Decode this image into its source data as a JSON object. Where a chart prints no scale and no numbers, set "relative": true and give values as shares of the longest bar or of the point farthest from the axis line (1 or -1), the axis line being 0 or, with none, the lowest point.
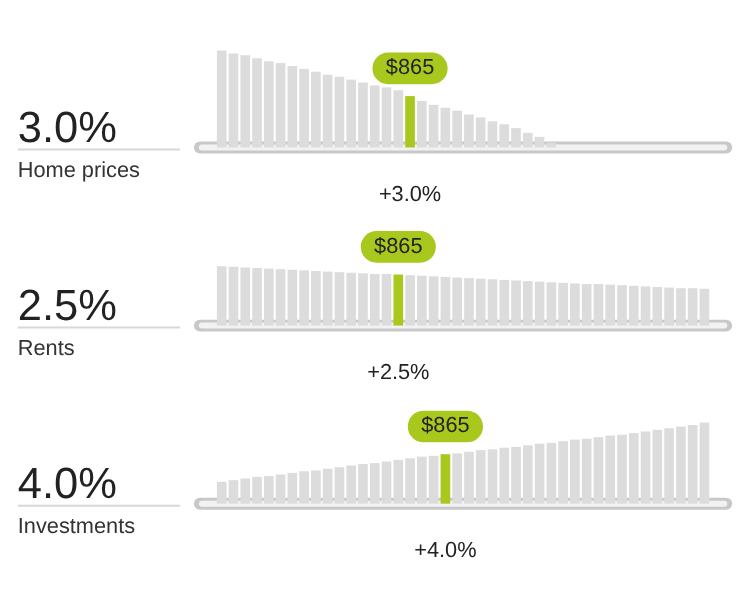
{
  "chart_data": [
    {
      "type": "bar",
      "relative": true,
      "title": "3.0%",
      "subtitle": "Home prices",
      "annotations": [
        "$865",
        "+3.0%"
      ],
      "categories": [
        null,
        null,
        null,
        null,
        null,
        null,
        null,
        null,
        null,
        null,
        null,
        null,
        null,
        null,
        null,
        null,
        null,
        null,
        null,
        null,
        null,
        null,
        null,
        null,
        null,
        null,
        null,
        null,
        null
      ],
      "values": [
        1.0,
        0.97,
        0.95,
        0.92,
        0.89,
        0.87,
        0.84,
        0.81,
        0.78,
        0.75,
        0.73,
        0.7,
        0.67,
        0.64,
        0.62,
        0.59,
        0.53,
        0.48,
        0.44,
        0.41,
        0.38,
        0.34,
        0.31,
        0.27,
        0.24,
        0.2,
        0.15,
        0.11,
        0.05
      ],
      "colors": [
        "#dcdcdc",
        "#dcdcdc",
        "#dcdcdc",
        "#dcdcdc",
        "#dcdcdc",
        "#dcdcdc",
        "#dcdcdc",
        "#dcdcdc",
        "#dcdcdc",
        "#dcdcdc",
        "#dcdcdc",
        "#dcdcdc",
        "#dcdcdc",
        "#dcdcdc",
        "#dcdcdc",
        "#dcdcdc",
        "#a8c81e",
        "#dcdcdc",
        "#dcdcdc",
        "#dcdcdc",
        "#dcdcdc",
        "#dcdcdc",
        "#dcdcdc",
        "#dcdcdc",
        "#dcdcdc",
        "#dcdcdc",
        "#dcdcdc",
        "#dcdcdc",
        "#dcdcdc"
      ]
    },
    {
      "type": "bar",
      "relative": true,
      "title": "2.5%",
      "subtitle": "Rents",
      "annotations": [
        "$865",
        "+2.5%"
      ],
      "categories": [
        null,
        null,
        null,
        null,
        null,
        null,
        null,
        null,
        null,
        null,
        null,
        null,
        null,
        null,
        null,
        null,
        null,
        null,
        null,
        null,
        null,
        null,
        null,
        null,
        null,
        null,
        null,
        null,
        null,
        null,
        null,
        null,
        null,
        null,
        null,
        null,
        null,
        null,
        null,
        null,
        null,
        null
      ],
      "values": [
        1.0,
        0.99,
        0.98,
        0.97,
        0.96,
        0.95,
        0.94,
        0.93,
        0.92,
        0.91,
        0.9,
        0.89,
        0.88,
        0.87,
        0.87,
        0.86,
        0.85,
        0.84,
        0.83,
        0.82,
        0.81,
        0.8,
        0.79,
        0.78,
        0.77,
        0.76,
        0.75,
        0.74,
        0.73,
        0.72,
        0.71,
        0.7,
        0.7,
        0.69,
        0.68,
        0.67,
        0.66,
        0.65,
        0.64,
        0.63,
        0.63,
        0.62
      ],
      "colors": [
        "#dcdcdc",
        "#dcdcdc",
        "#dcdcdc",
        "#dcdcdc",
        "#dcdcdc",
        "#dcdcdc",
        "#dcdcdc",
        "#dcdcdc",
        "#dcdcdc",
        "#dcdcdc",
        "#dcdcdc",
        "#dcdcdc",
        "#dcdcdc",
        "#dcdcdc",
        "#dcdcdc",
        "#a8c81e",
        "#dcdcdc",
        "#dcdcdc",
        "#dcdcdc",
        "#dcdcdc",
        "#dcdcdc",
        "#dcdcdc",
        "#dcdcdc",
        "#dcdcdc",
        "#dcdcdc",
        "#dcdcdc",
        "#dcdcdc",
        "#dcdcdc",
        "#dcdcdc",
        "#dcdcdc",
        "#dcdcdc",
        "#dcdcdc",
        "#dcdcdc",
        "#dcdcdc",
        "#dcdcdc",
        "#dcdcdc",
        "#dcdcdc",
        "#dcdcdc",
        "#dcdcdc",
        "#dcdcdc",
        "#dcdcdc",
        "#dcdcdc"
      ]
    },
    {
      "type": "bar",
      "relative": true,
      "title": "4.0%",
      "subtitle": "Investments",
      "annotations": [
        "$865",
        "+4.0%"
      ],
      "categories": [
        null,
        null,
        null,
        null,
        null,
        null,
        null,
        null,
        null,
        null,
        null,
        null,
        null,
        null,
        null,
        null,
        null,
        null,
        null,
        null,
        null,
        null,
        null,
        null,
        null,
        null,
        null,
        null,
        null,
        null,
        null,
        null,
        null,
        null,
        null,
        null,
        null,
        null,
        null,
        null,
        null,
        null
      ],
      "values": [
        0.27,
        0.29,
        0.31,
        0.33,
        0.34,
        0.36,
        0.38,
        0.4,
        0.41,
        0.43,
        0.45,
        0.47,
        0.49,
        0.5,
        0.52,
        0.54,
        0.56,
        0.58,
        0.59,
        0.61,
        0.62,
        0.64,
        0.66,
        0.67,
        0.69,
        0.7,
        0.72,
        0.74,
        0.75,
        0.77,
        0.79,
        0.8,
        0.82,
        0.84,
        0.85,
        0.87,
        0.89,
        0.91,
        0.93,
        0.95,
        0.97,
        1.0
      ],
      "colors": [
        "#dcdcdc",
        "#dcdcdc",
        "#dcdcdc",
        "#dcdcdc",
        "#dcdcdc",
        "#dcdcdc",
        "#dcdcdc",
        "#dcdcdc",
        "#dcdcdc",
        "#dcdcdc",
        "#dcdcdc",
        "#dcdcdc",
        "#dcdcdc",
        "#dcdcdc",
        "#dcdcdc",
        "#dcdcdc",
        "#dcdcdc",
        "#dcdcdc",
        "#dcdcdc",
        "#a8c81e",
        "#dcdcdc",
        "#dcdcdc",
        "#dcdcdc",
        "#dcdcdc",
        "#dcdcdc",
        "#dcdcdc",
        "#dcdcdc",
        "#dcdcdc",
        "#dcdcdc",
        "#dcdcdc",
        "#dcdcdc",
        "#dcdcdc",
        "#dcdcdc",
        "#dcdcdc",
        "#dcdcdc",
        "#dcdcdc",
        "#dcdcdc",
        "#dcdcdc",
        "#dcdcdc",
        "#dcdcdc",
        "#dcdcdc",
        "#dcdcdc"
      ]
    }
  ]
}
